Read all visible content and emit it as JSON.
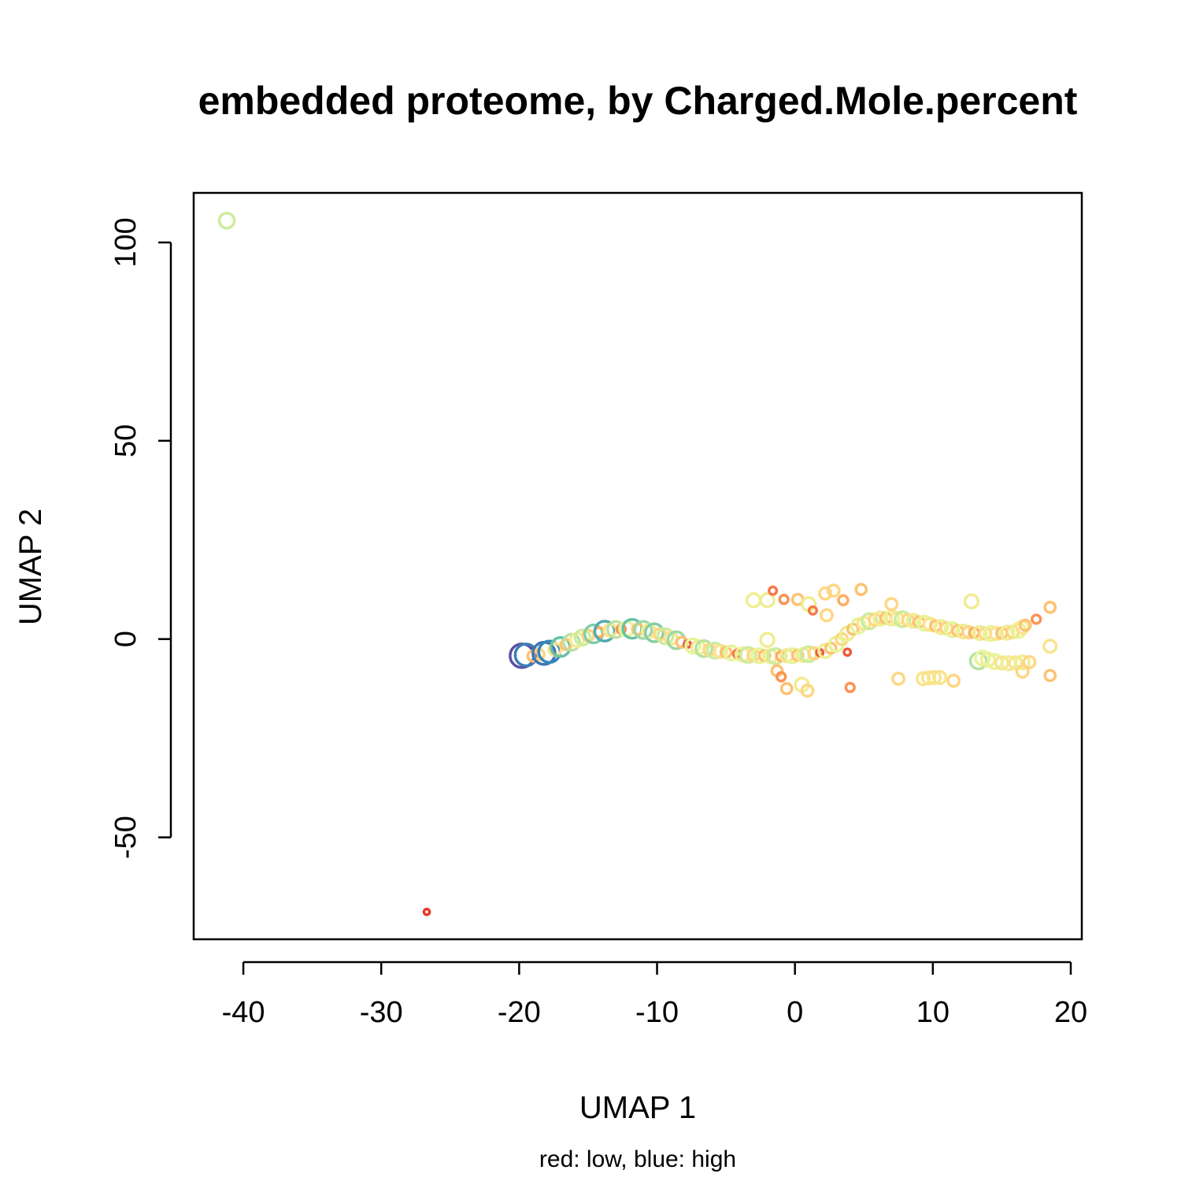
{
  "chart_data": {
    "type": "scatter",
    "title": "embedded proteome, by Charged.Mole.percent",
    "xlabel": "UMAP 1",
    "ylabel": "UMAP 2",
    "subtitle": "red: low, blue: high",
    "xticks": [
      "-40",
      "-30",
      "-20",
      "-10",
      "0",
      "10",
      "20"
    ],
    "yticks": [
      "-50",
      "0",
      "50",
      "100"
    ],
    "xlim": [
      -43.6,
      20.8
    ],
    "ylim": [
      -75.7,
      112.5
    ],
    "grid": false,
    "color_scale": {
      "low": "#d7191c",
      "high": "#2b83ba"
    },
    "points": [
      {
        "x": -41.2,
        "y": 105.5,
        "level": 0.55
      },
      {
        "x": -26.7,
        "y": -68.8,
        "level": 0.05
      },
      {
        "x": -19.8,
        "y": -4.2,
        "level": 1.0
      },
      {
        "x": -19.5,
        "y": -4.0,
        "level": 0.9
      },
      {
        "x": -19.0,
        "y": -4.3,
        "level": 0.3
      },
      {
        "x": -18.6,
        "y": -3.9,
        "level": 0.35
      },
      {
        "x": -18.2,
        "y": -3.6,
        "level": 0.92
      },
      {
        "x": -17.8,
        "y": -3.2,
        "level": 0.88
      },
      {
        "x": -17.4,
        "y": -2.6,
        "level": 0.4
      },
      {
        "x": -17.0,
        "y": -2.0,
        "level": 0.75
      },
      {
        "x": -16.6,
        "y": -1.4,
        "level": 0.3
      },
      {
        "x": -16.2,
        "y": -0.8,
        "level": 0.6
      },
      {
        "x": -15.8,
        "y": -0.2,
        "level": 0.45
      },
      {
        "x": -15.4,
        "y": 0.4,
        "level": 0.55
      },
      {
        "x": -15.0,
        "y": 0.9,
        "level": 0.35
      },
      {
        "x": -14.6,
        "y": 1.3,
        "level": 0.7
      },
      {
        "x": -14.2,
        "y": 1.7,
        "level": 0.25
      },
      {
        "x": -13.8,
        "y": 2.0,
        "level": 0.8
      },
      {
        "x": -13.4,
        "y": 2.2,
        "level": 0.4
      },
      {
        "x": -13.0,
        "y": 2.4,
        "level": 0.6
      },
      {
        "x": -12.6,
        "y": 2.5,
        "level": 0.2
      },
      {
        "x": -12.2,
        "y": 2.6,
        "level": 0.5
      },
      {
        "x": -11.8,
        "y": 2.6,
        "level": 0.75
      },
      {
        "x": -11.4,
        "y": 2.5,
        "level": 0.3
      },
      {
        "x": -11.0,
        "y": 2.3,
        "level": 0.65
      },
      {
        "x": -10.6,
        "y": 2.0,
        "level": 0.45
      },
      {
        "x": -10.2,
        "y": 1.6,
        "level": 0.7
      },
      {
        "x": -9.8,
        "y": 1.2,
        "level": 0.35
      },
      {
        "x": -9.4,
        "y": 0.7,
        "level": 0.55
      },
      {
        "x": -9.0,
        "y": 0.2,
        "level": 0.4
      },
      {
        "x": -8.6,
        "y": -0.3,
        "level": 0.65
      },
      {
        "x": -8.2,
        "y": -0.8,
        "level": 0.3
      },
      {
        "x": -7.8,
        "y": -1.3,
        "level": 0.1
      },
      {
        "x": -7.4,
        "y": -1.7,
        "level": 0.5
      },
      {
        "x": -7.0,
        "y": -2.1,
        "level": 0.45
      },
      {
        "x": -6.6,
        "y": -2.4,
        "level": 0.6
      },
      {
        "x": -6.2,
        "y": -2.7,
        "level": 0.35
      },
      {
        "x": -5.8,
        "y": -2.9,
        "level": 0.55
      },
      {
        "x": -5.4,
        "y": -3.1,
        "level": 0.4
      },
      {
        "x": -5.0,
        "y": -3.3,
        "level": 0.3
      },
      {
        "x": -4.6,
        "y": -3.5,
        "level": 0.5
      },
      {
        "x": -4.2,
        "y": -3.7,
        "level": 0.15
      },
      {
        "x": -3.8,
        "y": -3.9,
        "level": 0.45
      },
      {
        "x": -3.4,
        "y": -4.0,
        "level": 0.55
      },
      {
        "x": -3.0,
        "y": -4.1,
        "level": 0.35
      },
      {
        "x": -2.6,
        "y": -4.2,
        "level": 0.5
      },
      {
        "x": -2.2,
        "y": -4.2,
        "level": 0.3
      },
      {
        "x": -1.8,
        "y": -4.3,
        "level": 0.45
      },
      {
        "x": -1.4,
        "y": -4.3,
        "level": 0.55
      },
      {
        "x": -1.0,
        "y": -4.3,
        "level": 0.25
      },
      {
        "x": -0.6,
        "y": -4.2,
        "level": 0.4
      },
      {
        "x": -0.2,
        "y": -4.2,
        "level": 0.5
      },
      {
        "x": 0.2,
        "y": -4.1,
        "level": 0.3
      },
      {
        "x": 0.6,
        "y": -4.0,
        "level": 0.45
      },
      {
        "x": 1.0,
        "y": -3.8,
        "level": 0.55
      },
      {
        "x": 1.4,
        "y": -3.6,
        "level": 0.35
      },
      {
        "x": 1.8,
        "y": -3.4,
        "level": 0.1
      },
      {
        "x": 2.2,
        "y": -3.0,
        "level": 0.45
      },
      {
        "x": 2.6,
        "y": -2.3,
        "level": 0.3
      },
      {
        "x": 3.0,
        "y": -1.3,
        "level": 0.5
      },
      {
        "x": 3.4,
        "y": 0.0,
        "level": 0.35
      },
      {
        "x": 3.8,
        "y": 1.4,
        "level": 0.45
      },
      {
        "x": 4.2,
        "y": 2.5,
        "level": 0.3
      },
      {
        "x": 4.6,
        "y": 3.3,
        "level": 0.5
      },
      {
        "x": 5.0,
        "y": 4.0,
        "level": 0.4
      },
      {
        "x": 5.4,
        "y": 4.5,
        "level": 0.55
      },
      {
        "x": 5.8,
        "y": 4.9,
        "level": 0.35
      },
      {
        "x": 6.2,
        "y": 5.2,
        "level": 0.45
      },
      {
        "x": 6.6,
        "y": 5.3,
        "level": 0.3
      },
      {
        "x": 7.0,
        "y": 5.3,
        "level": 0.5
      },
      {
        "x": 7.4,
        "y": 5.2,
        "level": 0.4
      },
      {
        "x": 7.8,
        "y": 5.0,
        "level": 0.55
      },
      {
        "x": 8.2,
        "y": 4.8,
        "level": 0.35
      },
      {
        "x": 8.6,
        "y": 4.6,
        "level": 0.45
      },
      {
        "x": 9.0,
        "y": 4.3,
        "level": 0.3
      },
      {
        "x": 9.4,
        "y": 4.0,
        "level": 0.5
      },
      {
        "x": 9.8,
        "y": 3.7,
        "level": 0.4
      },
      {
        "x": 10.2,
        "y": 3.3,
        "level": 0.3
      },
      {
        "x": 10.6,
        "y": 3.0,
        "level": 0.45
      },
      {
        "x": 11.0,
        "y": 2.7,
        "level": 0.35
      },
      {
        "x": 11.4,
        "y": 2.4,
        "level": 0.5
      },
      {
        "x": 11.8,
        "y": 2.1,
        "level": 0.3
      },
      {
        "x": 12.2,
        "y": 1.9,
        "level": 0.45
      },
      {
        "x": 12.6,
        "y": 1.7,
        "level": 0.35
      },
      {
        "x": 13.0,
        "y": 1.6,
        "level": 0.25
      },
      {
        "x": 13.4,
        "y": 1.5,
        "level": 0.45
      },
      {
        "x": 13.8,
        "y": 1.4,
        "level": 0.35
      },
      {
        "x": 14.2,
        "y": 1.4,
        "level": 0.5
      },
      {
        "x": 14.6,
        "y": 1.4,
        "level": 0.4
      },
      {
        "x": 15.0,
        "y": 1.5,
        "level": 0.3
      },
      {
        "x": 15.4,
        "y": 1.6,
        "level": 0.45
      },
      {
        "x": 15.8,
        "y": 1.8,
        "level": 0.35
      },
      {
        "x": 16.2,
        "y": 2.2,
        "level": 0.5
      },
      {
        "x": 16.5,
        "y": 3.0,
        "level": 0.4
      },
      {
        "x": 16.7,
        "y": 3.5,
        "level": 0.3
      },
      {
        "x": 13.3,
        "y": -5.5,
        "level": 0.6
      },
      {
        "x": 13.6,
        "y": -4.8,
        "level": 0.5
      },
      {
        "x": 14.0,
        "y": -5.2,
        "level": 0.45
      },
      {
        "x": 14.5,
        "y": -5.7,
        "level": 0.5
      },
      {
        "x": 15.0,
        "y": -6.0,
        "level": 0.4
      },
      {
        "x": 15.5,
        "y": -6.1,
        "level": 0.45
      },
      {
        "x": 16.0,
        "y": -6.0,
        "level": 0.4
      },
      {
        "x": 16.5,
        "y": -5.9,
        "level": 0.45
      },
      {
        "x": 17.0,
        "y": -5.8,
        "level": 0.35
      },
      {
        "x": -3.0,
        "y": 9.8,
        "level": 0.45
      },
      {
        "x": -2.0,
        "y": 9.8,
        "level": 0.45
      },
      {
        "x": -1.6,
        "y": 12.2,
        "level": 0.15
      },
      {
        "x": -0.8,
        "y": 10.0,
        "level": 0.2
      },
      {
        "x": 0.2,
        "y": 10.0,
        "level": 0.3
      },
      {
        "x": 1.0,
        "y": 8.8,
        "level": 0.45
      },
      {
        "x": 1.3,
        "y": 7.2,
        "level": 0.15
      },
      {
        "x": 2.2,
        "y": 11.5,
        "level": 0.35
      },
      {
        "x": 2.8,
        "y": 12.2,
        "level": 0.35
      },
      {
        "x": 3.5,
        "y": 9.8,
        "level": 0.25
      },
      {
        "x": 2.3,
        "y": 6.0,
        "level": 0.35
      },
      {
        "x": 4.8,
        "y": 12.5,
        "level": 0.3
      },
      {
        "x": 7.0,
        "y": 8.8,
        "level": 0.35
      },
      {
        "x": 12.8,
        "y": 9.5,
        "level": 0.45
      },
      {
        "x": 17.5,
        "y": 5.0,
        "level": 0.2
      },
      {
        "x": 18.5,
        "y": 8.0,
        "level": 0.3
      },
      {
        "x": 18.5,
        "y": -1.8,
        "level": 0.4
      },
      {
        "x": 18.5,
        "y": -9.2,
        "level": 0.3
      },
      {
        "x": 16.5,
        "y": -8.2,
        "level": 0.35
      },
      {
        "x": -2.0,
        "y": -0.2,
        "level": 0.45
      },
      {
        "x": -1.3,
        "y": -8.0,
        "level": 0.3
      },
      {
        "x": -1.0,
        "y": -9.5,
        "level": 0.2
      },
      {
        "x": -0.6,
        "y": -12.5,
        "level": 0.3
      },
      {
        "x": 0.5,
        "y": -11.5,
        "level": 0.45
      },
      {
        "x": 0.9,
        "y": -13.0,
        "level": 0.35
      },
      {
        "x": 3.8,
        "y": -3.3,
        "level": 0.1
      },
      {
        "x": 4.0,
        "y": -12.2,
        "level": 0.2
      },
      {
        "x": 7.5,
        "y": -10.0,
        "level": 0.35
      },
      {
        "x": 9.3,
        "y": -10.0,
        "level": 0.4
      },
      {
        "x": 9.7,
        "y": -9.8,
        "level": 0.4
      },
      {
        "x": 10.1,
        "y": -9.7,
        "level": 0.4
      },
      {
        "x": 10.5,
        "y": -9.7,
        "level": 0.4
      },
      {
        "x": 11.5,
        "y": -10.5,
        "level": 0.35
      }
    ]
  }
}
